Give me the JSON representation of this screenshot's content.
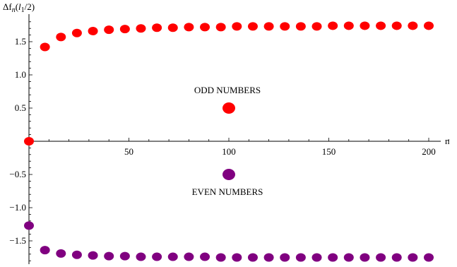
{
  "chart_data": {
    "type": "scatter",
    "ylabel": "Δf_n(l_1/2)",
    "ylabel_parts": {
      "main": "Δf",
      "sub_n": "n",
      "open": "(",
      "l": "l",
      "sub_1": "1",
      "close": "/2)"
    },
    "xlabel": "n",
    "xlim": [
      0,
      210
    ],
    "ylim": [
      -1.9,
      1.9
    ],
    "x_ticks": [
      50,
      100,
      150,
      200
    ],
    "x_tick_labels": [
      "50",
      "100",
      "150",
      "200"
    ],
    "y_ticks": [
      -1.5,
      -1.0,
      -0.5,
      0.5,
      1.0,
      1.5
    ],
    "y_tick_labels": [
      "−1.5",
      "−1.0",
      "−0.5",
      "0.5",
      "1.0",
      "1.5"
    ],
    "grid": false,
    "series": [
      {
        "color": "#ff0000",
        "x": [
          0,
          8,
          16,
          24,
          32,
          40,
          48,
          56,
          64,
          72,
          80,
          88,
          96,
          104,
          112,
          120,
          128,
          136,
          144,
          152,
          160,
          168,
          176,
          184,
          192,
          200
        ],
        "y": [
          0,
          1.42,
          1.57,
          1.63,
          1.66,
          1.68,
          1.69,
          1.7,
          1.71,
          1.71,
          1.72,
          1.72,
          1.72,
          1.73,
          1.73,
          1.73,
          1.73,
          1.73,
          1.73,
          1.74,
          1.74,
          1.74,
          1.74,
          1.74,
          1.74,
          1.74
        ]
      },
      {
        "color": "#800080",
        "x": [
          0,
          8,
          16,
          24,
          32,
          40,
          48,
          56,
          64,
          72,
          80,
          88,
          96,
          104,
          112,
          120,
          128,
          136,
          144,
          152,
          160,
          168,
          176,
          184,
          192,
          200
        ],
        "y": [
          -1.27,
          -1.64,
          -1.69,
          -1.71,
          -1.72,
          -1.73,
          -1.73,
          -1.74,
          -1.74,
          -1.74,
          -1.74,
          -1.74,
          -1.75,
          -1.75,
          -1.75,
          -1.75,
          -1.75,
          -1.75,
          -1.75,
          -1.75,
          -1.75,
          -1.75,
          -1.75,
          -1.75,
          -1.75,
          -1.75
        ]
      }
    ],
    "annotations": [
      {
        "text": "ODD NUMBERS",
        "marker": {
          "x": 100,
          "y": 0.5,
          "color": "#ff0000"
        }
      },
      {
        "text": "EVEN NUMBERS",
        "marker": {
          "x": 100,
          "y": -0.5,
          "color": "#800080"
        }
      }
    ]
  }
}
